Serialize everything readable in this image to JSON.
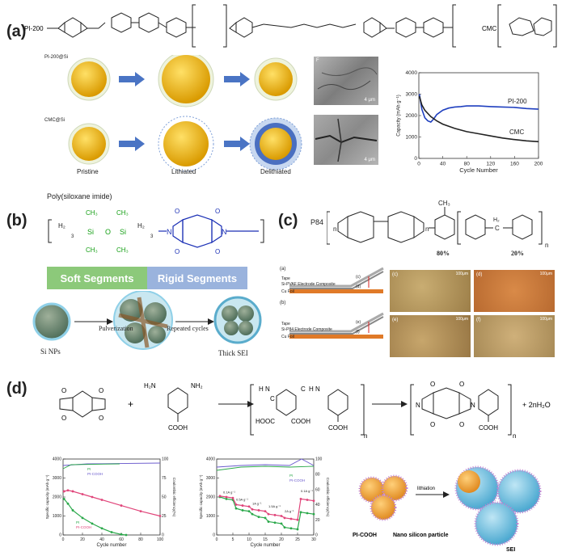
{
  "panel_a": {
    "label": "(a)",
    "pi_name": "PI-200",
    "cmc_name": "CMC",
    "row1_label": "PI-200@Si",
    "row2_label": "CMC@Si",
    "stage_pristine": "Pristine",
    "stage_lithiated": "Lithiated",
    "stage_delithiated": "Delithiated",
    "sem_top_letter": "F",
    "sem_top_scale": "4 μm",
    "sem_bottom_scale": "4 μm",
    "chart_data": {
      "type": "line",
      "xlabel": "Cycle Number",
      "ylabel": "Capacity (mAh g⁻¹)",
      "xlim": [
        0,
        200
      ],
      "ylim": [
        0,
        4000
      ],
      "xticks": [
        0,
        40,
        80,
        120,
        160,
        200
      ],
      "yticks": [
        0,
        1000,
        2000,
        3000,
        4000
      ],
      "series": [
        {
          "name": "PI-200",
          "color": "#1f3fbf",
          "x": [
            1,
            5,
            10,
            15,
            20,
            25,
            30,
            40,
            50,
            60,
            70,
            80,
            100,
            120,
            140,
            160,
            180,
            200
          ],
          "y": [
            3000,
            2300,
            1900,
            1750,
            1700,
            1850,
            2050,
            2250,
            2350,
            2400,
            2420,
            2450,
            2450,
            2420,
            2400,
            2380,
            2330,
            2300
          ]
        },
        {
          "name": "CMC",
          "color": "#222222",
          "x": [
            1,
            5,
            10,
            20,
            30,
            40,
            60,
            80,
            100,
            120,
            140,
            160,
            180,
            200
          ],
          "y": [
            2900,
            2500,
            2250,
            1950,
            1750,
            1600,
            1400,
            1250,
            1150,
            1050,
            950,
            880,
            820,
            780
          ]
        }
      ]
    }
  },
  "panel_b": {
    "label": "(b)",
    "title": "Poly(siloxane imide)",
    "soft_label": "Soft Segments",
    "rigid_label": "Rigid Segments",
    "si_np": "Si NPs",
    "pulverization": "Pulverization",
    "repeated": "Repeated cycles",
    "thick_sei": "Thick SEI",
    "chem_ch2": "H₂",
    "chem_sub3": "3",
    "chem_si": "Si",
    "chem_o": "O",
    "chem_ch3": "CH₃",
    "chem_n": "N",
    "chem_o_atom": "O",
    "colors": {
      "soft": "#8cc97a",
      "rigid": "#9ab3dd",
      "siloxane": "#16a016",
      "imide": "#1a2fb5"
    }
  },
  "panel_c": {
    "label": "(c)",
    "polymer": "P84",
    "pct_80": "80%",
    "pct_20": "20%",
    "ch3": "CH₃",
    "h2c": "H₂",
    "c_atom": "C",
    "n_sub": "n",
    "sub_a": "(a)",
    "sub_b": "(b)",
    "tape": "Tape",
    "comp_a": "Si-PVAF Electrode Composite",
    "comp_b": "Si-P84 Electrode Composite",
    "cu_foil": "Cu Foil",
    "mark_c": "(c)",
    "mark_d": "(d)",
    "mark_e": "(e)",
    "mark_f": "(f)",
    "micro_c": "(c)",
    "micro_d": "(d)",
    "micro_e": "(e)",
    "micro_f": "(f)",
    "scale": "100μm"
  },
  "panel_d": {
    "label": "(d)",
    "plus": "+",
    "nh2_left": "H₂N",
    "nh2_right": "NH₂",
    "cooh": "COOH",
    "hooc": "HOOC",
    "product": "+ 2nH₂O",
    "n_sub": "n",
    "nh": "N",
    "h_atom": "H",
    "c_atom": "C",
    "o_atom": "O",
    "chart1": {
      "type": "line",
      "xlabel": "Cycle number",
      "ylabel_left": "Specific capacity (mAh g⁻¹)",
      "ylabel_right": "Coulombic efficiency(%)",
      "xlim": [
        0,
        100
      ],
      "ylim": [
        0,
        4000
      ],
      "xticks": [
        0,
        20,
        40,
        60,
        80,
        100
      ],
      "yticks": [
        0,
        1000,
        2000,
        3000,
        4000
      ],
      "yticks_right": [
        0,
        25,
        50,
        75,
        100
      ],
      "legend_top": [
        "PI",
        "PI-COOH"
      ],
      "legend_bottom": [
        "PI",
        "PI-COOH"
      ],
      "series": [
        {
          "name": "PI",
          "color": "#2aa84a",
          "x": [
            1,
            5,
            10,
            20,
            30,
            40,
            50,
            60,
            65
          ],
          "y": [
            1900,
            1650,
            1300,
            900,
            600,
            350,
            150,
            30,
            0
          ]
        },
        {
          "name": "PI-COOH",
          "color": "#e0457a",
          "x": [
            1,
            5,
            10,
            20,
            30,
            40,
            60,
            80,
            100
          ],
          "y": [
            2300,
            2350,
            2300,
            2150,
            2000,
            1850,
            1550,
            1250,
            1000
          ]
        }
      ]
    },
    "chart2": {
      "type": "line",
      "xlabel": "Cycle number",
      "ylabel_left": "Specific capacity (mAh g⁻¹)",
      "ylabel_right": "Coulombic efficiency(%)",
      "xlim": [
        0,
        30
      ],
      "ylim": [
        0,
        4000
      ],
      "xticks": [
        0,
        5,
        10,
        15,
        20,
        25,
        30
      ],
      "yticks": [
        0,
        1000,
        2000,
        3000,
        4000
      ],
      "yticks_right": [
        0,
        20,
        40,
        60,
        80,
        100
      ],
      "legend": [
        "PI",
        "PI-COOH"
      ],
      "rate_labels": [
        "0.1A g⁻¹",
        "0.5A g⁻¹",
        "1A g⁻¹",
        "1.5A g⁻¹",
        "2A g⁻¹",
        "0.1A g⁻¹"
      ],
      "series": [
        {
          "name": "PI",
          "color": "#2aa84a",
          "x": [
            1,
            3,
            5,
            6,
            8,
            10,
            11,
            13,
            15,
            16,
            18,
            20,
            21,
            23,
            25,
            26,
            28,
            30
          ],
          "y": [
            2000,
            1900,
            1850,
            1400,
            1300,
            1250,
            1100,
            950,
            900,
            700,
            650,
            600,
            400,
            350,
            300,
            1200,
            1150,
            1100
          ]
        },
        {
          "name": "PI-COOH",
          "color": "#e0457a",
          "x": [
            1,
            3,
            5,
            6,
            8,
            10,
            11,
            13,
            15,
            16,
            18,
            20,
            21,
            23,
            25,
            26,
            28,
            30
          ],
          "y": [
            2050,
            2000,
            1950,
            1600,
            1550,
            1500,
            1350,
            1300,
            1250,
            1100,
            1050,
            1000,
            900,
            850,
            800,
            1900,
            1850,
            1800
          ]
        }
      ]
    },
    "schematic": {
      "lithiation": "lithiation",
      "pi_cooh": "PI-COOH",
      "nano_si": "Nano silicon particle",
      "sei": "SEI"
    }
  }
}
